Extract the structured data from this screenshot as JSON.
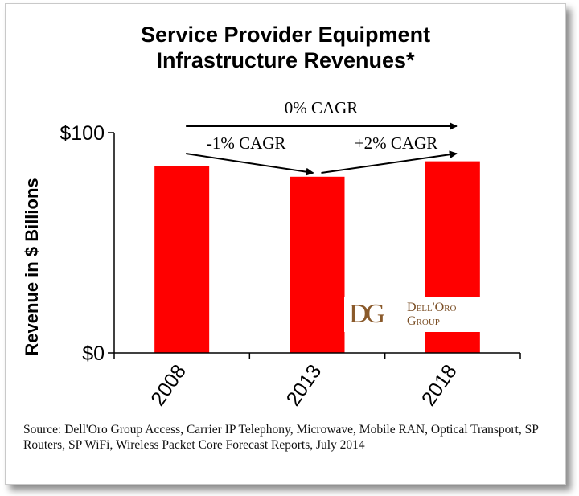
{
  "chart_data": {
    "type": "bar",
    "title": [
      "Service Provider Equipment",
      "Infrastructure Revenues*"
    ],
    "ylabel": "Revenue in $ Billions",
    "xlabel": "",
    "ylim": [
      0,
      100
    ],
    "y_ticks": [
      "$0",
      "$100"
    ],
    "categories": [
      "2008",
      "2013",
      "2018"
    ],
    "values": [
      85,
      80,
      87
    ],
    "bar_color": "#ff0000",
    "grid": false,
    "legend": "none",
    "annotations": [
      {
        "text": "0% CAGR",
        "from": "2008",
        "to": "2018"
      },
      {
        "text": "-1% CAGR",
        "from": "2008",
        "to": "2013"
      },
      {
        "text": "+2% CAGR",
        "from": "2013",
        "to": "2018"
      }
    ]
  },
  "logo": {
    "monogram": "DG",
    "line1": "Dell'Oro",
    "line2": "Group",
    "color": "#8a5a2b"
  },
  "source": "Source: Dell'Oro Group Access, Carrier IP Telephony, Microwave, Mobile RAN, Optical Transport, SP Routers, SP WiFi, Wireless Packet Core Forecast Reports, July 2014"
}
